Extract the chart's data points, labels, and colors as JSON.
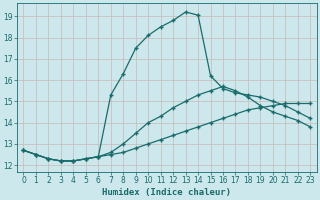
{
  "xlabel": "Humidex (Indice chaleur)",
  "bg_color": "#cce8ec",
  "grid_color": "#b0d4d8",
  "line_color": "#1a6b6b",
  "xlim": [
    -0.5,
    23.5
  ],
  "ylim": [
    11.7,
    19.6
  ],
  "xticks": [
    0,
    1,
    2,
    3,
    4,
    5,
    6,
    7,
    8,
    9,
    10,
    11,
    12,
    13,
    14,
    15,
    16,
    17,
    18,
    19,
    20,
    21,
    22,
    23
  ],
  "yticks": [
    12,
    13,
    14,
    15,
    16,
    17,
    18,
    19
  ],
  "line1_x": [
    0,
    1,
    2,
    3,
    4,
    5,
    6,
    7,
    8,
    9,
    10,
    11,
    12,
    13,
    14,
    15,
    16,
    17,
    18,
    19,
    20,
    21,
    22,
    23
  ],
  "line1_y": [
    12.7,
    12.5,
    12.3,
    12.2,
    12.2,
    12.3,
    12.4,
    15.3,
    16.3,
    17.5,
    18.1,
    18.5,
    18.8,
    19.2,
    19.05,
    16.2,
    15.6,
    15.4,
    15.3,
    15.2,
    15.0,
    14.8,
    14.5,
    14.2
  ],
  "line2_x": [
    0,
    1,
    2,
    3,
    4,
    5,
    6,
    7,
    8,
    9,
    10,
    11,
    12,
    13,
    14,
    15,
    16,
    17,
    18,
    19,
    20,
    21,
    22,
    23
  ],
  "line2_y": [
    12.7,
    12.5,
    12.3,
    12.2,
    12.2,
    12.3,
    12.4,
    12.6,
    13.0,
    13.5,
    14.0,
    14.3,
    14.7,
    15.0,
    15.3,
    15.5,
    15.7,
    15.5,
    15.2,
    14.8,
    14.5,
    14.3,
    14.1,
    13.8
  ],
  "line3_x": [
    0,
    1,
    2,
    3,
    4,
    5,
    6,
    7,
    8,
    9,
    10,
    11,
    12,
    13,
    14,
    15,
    16,
    17,
    18,
    19,
    20,
    21,
    22,
    23
  ],
  "line3_y": [
    12.7,
    12.5,
    12.3,
    12.2,
    12.2,
    12.3,
    12.4,
    12.5,
    12.6,
    12.8,
    13.0,
    13.2,
    13.4,
    13.6,
    13.8,
    14.0,
    14.2,
    14.4,
    14.6,
    14.7,
    14.8,
    14.9,
    14.9,
    14.9
  ]
}
